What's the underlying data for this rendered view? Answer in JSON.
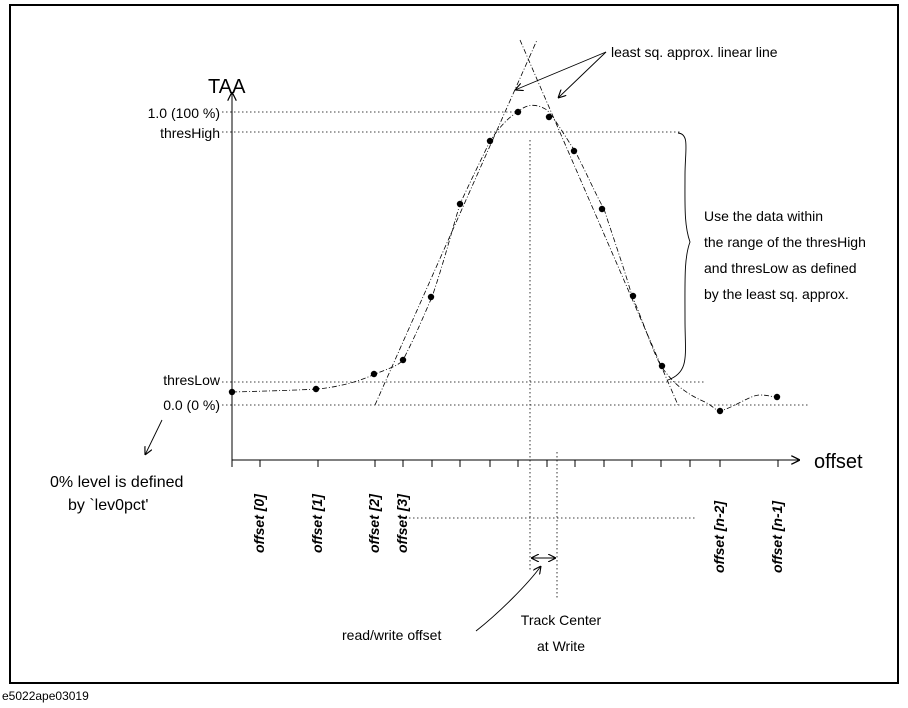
{
  "figure_id": "e5022ape03019",
  "y_axis_label": "TAA",
  "x_axis_label": "offset",
  "y_levels": {
    "full": "1.0 (100 %)",
    "thres_high": "thresHigh",
    "thres_low": "thresLow",
    "zero": "0.0 (0 %)"
  },
  "x_ticks": [
    "offset [0]",
    "offset [1]",
    "offset [2]",
    "offset [3]",
    "offset [n-2]",
    "offset [n-1]"
  ],
  "annotations": {
    "least_sq": "least sq. approx. linear line",
    "use_data": [
      "Use the data within",
      "the range of the thresHigh",
      "and thresLow as defined",
      "by the least sq. approx."
    ],
    "level0": [
      "0% level is defined",
      "by `lev0pct'"
    ],
    "rw_offset": "read/write offset",
    "track_center": [
      "Track Center",
      "at Write"
    ]
  },
  "colors": {
    "ink": "#000000",
    "background": "#ffffff"
  }
}
